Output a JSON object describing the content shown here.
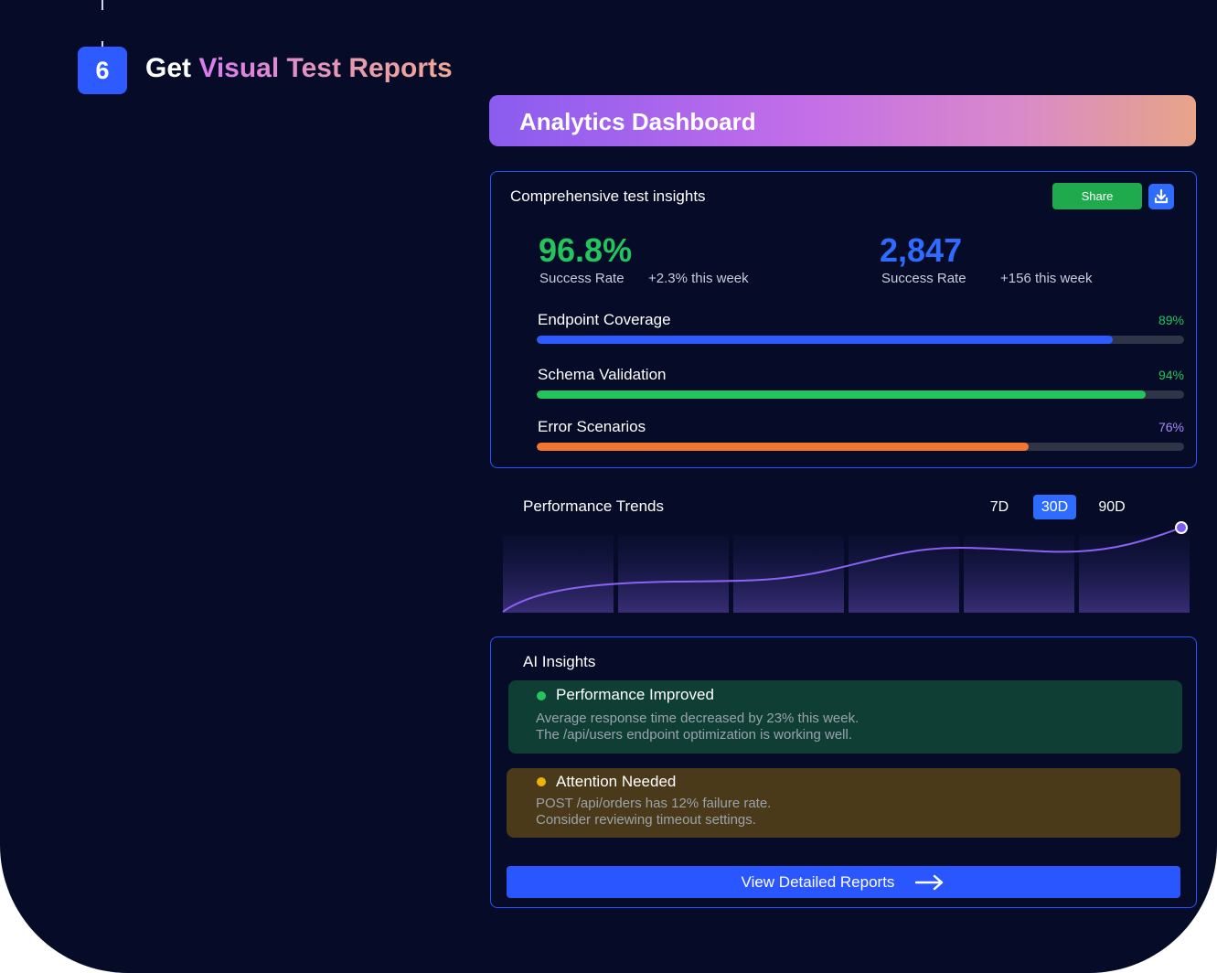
{
  "step": {
    "number": "6",
    "title_prefix": "Get",
    "title_highlight": "Visual Test Reports"
  },
  "dashboard": {
    "title": "Analytics Dashboard",
    "insights": {
      "title": "Comprehensive test insights",
      "share_label": "Share",
      "metrics": [
        {
          "value": "96.8%",
          "label": "Success Rate",
          "change": "+2.3% this week",
          "color": "#22c55e"
        },
        {
          "value": "2,847",
          "label": "Success Rate",
          "change": "+156 this week",
          "color": "#2e6bff"
        }
      ],
      "bars": [
        {
          "label": "Endpoint Coverage",
          "pct_text": "89%",
          "value": 89,
          "color": "#2e5bff",
          "pct_color": "#22c55e"
        },
        {
          "label": "Schema Validation",
          "pct_text": "94%",
          "value": 94,
          "color": "#22c55e",
          "pct_color": "#22c55e"
        },
        {
          "label": "Error Scenarios",
          "pct_text": "76%",
          "value": 76,
          "color": "#f27530",
          "pct_color": "#a78bfa"
        }
      ]
    },
    "trends": {
      "title": "Performance Trends",
      "ranges": [
        "7D",
        "30D",
        "90D"
      ],
      "active_range": "30D"
    },
    "ai": {
      "title": "AI Insights",
      "items": [
        {
          "title": "Performance Improved",
          "line1": "Average response time decreased by 23% this week.",
          "line2": "The /api/users endpoint optimization is working well.",
          "dot_color": "#22c55e",
          "bg_color": "#0f3e34"
        },
        {
          "title": "Attention Needed",
          "line1": "POST /api/orders has 12% failure rate.",
          "line2": "Consider reviewing timeout settings.",
          "dot_color": "#eab308",
          "bg_color": "#4a3a19"
        }
      ],
      "cta_label": "View Detailed Reports"
    }
  }
}
